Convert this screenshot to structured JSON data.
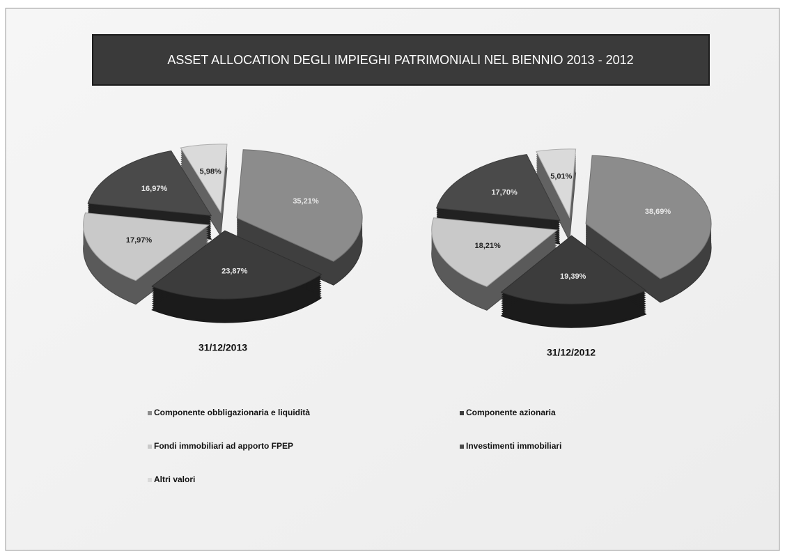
{
  "title": "ASSET ALLOCATION DEGLI IMPIEGHI PATRIMONIALI NEL BIENNIO 2013 - 2012",
  "categories": [
    "Componente obbligazionaria e liquidità",
    "Componente azionaria",
    "Fondi  immobiliari ad apporto FPEP",
    "Investimenti immobiliari",
    "Altri valori"
  ],
  "colors": [
    "#8c8c8c",
    "#3c3c3c",
    "#c9c9c9",
    "#4a4a4a",
    "#dadada"
  ],
  "chart_data": [
    {
      "type": "pie",
      "title": "31/12/2013",
      "values": [
        35.21,
        23.87,
        17.97,
        16.97,
        5.98
      ],
      "value_labels": [
        "35,21%",
        "23,87%",
        "17,97%",
        "16,97%",
        "5,98%"
      ]
    },
    {
      "type": "pie",
      "title": "31/12/2012",
      "values": [
        38.69,
        19.39,
        18.21,
        17.7,
        5.01
      ],
      "value_labels": [
        "38,69%",
        "19,39%",
        "18,21%",
        "17,70%",
        "5,01%"
      ]
    }
  ]
}
